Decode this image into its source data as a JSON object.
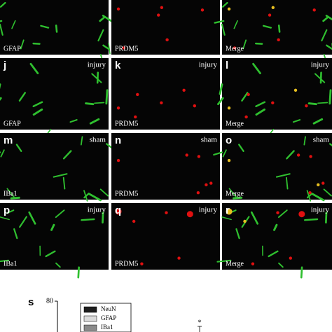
{
  "rows": [
    {
      "panels": [
        {
          "label": "GFAP"
        },
        {
          "label": "PRDM5"
        },
        {
          "label": "Merge"
        }
      ]
    },
    {
      "panels": [
        {
          "letter": "j",
          "condition": "injury",
          "label": "GFAP"
        },
        {
          "letter": "k",
          "condition": "injury",
          "label": "PRDM5"
        },
        {
          "letter": "l",
          "condition": "injury",
          "label": "Merge"
        }
      ]
    },
    {
      "panels": [
        {
          "letter": "m",
          "condition": "sham",
          "label": "IBa1"
        },
        {
          "letter": "n",
          "condition": "sham",
          "label": "PRDM5"
        },
        {
          "letter": "o",
          "condition": "sham",
          "label": "Merge"
        }
      ]
    },
    {
      "panels": [
        {
          "letter": "p",
          "condition": "injury",
          "label": "IBa1"
        },
        {
          "letter": "q",
          "condition": "injury",
          "label": "PRDM5"
        },
        {
          "letter": "r",
          "condition": "injury",
          "label": "Merge"
        }
      ]
    }
  ],
  "panel_s": {
    "letter": "s",
    "yticks": [
      80
    ],
    "legend": [
      {
        "name": "NeuN",
        "color": "#1e1e1e"
      },
      {
        "name": "GFAP",
        "color": "#dcdcdc"
      },
      {
        "name": "IBa1",
        "color": "#8a8a8a"
      }
    ],
    "annotation": "*"
  }
}
